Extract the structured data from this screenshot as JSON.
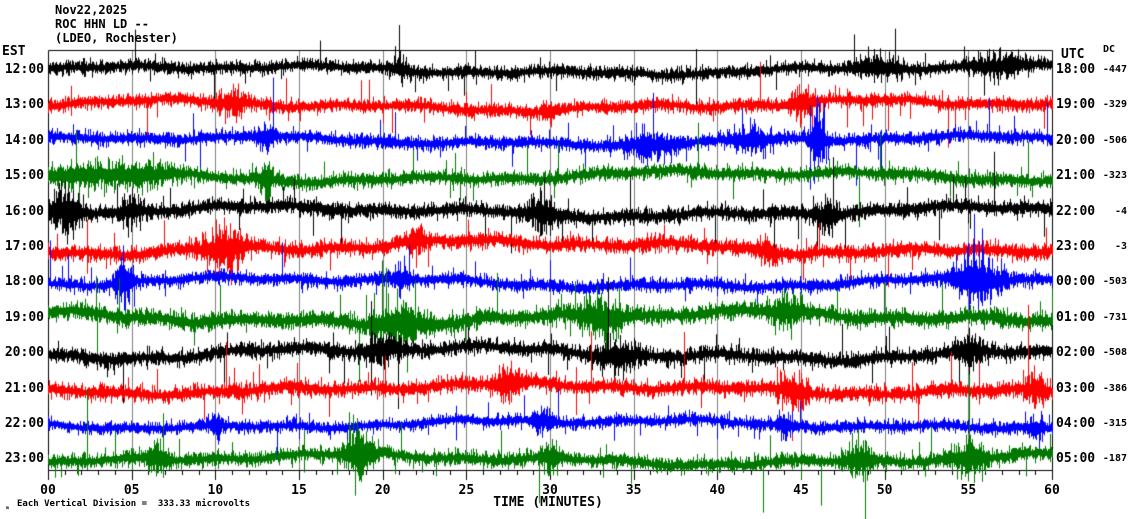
{
  "title": {
    "line1": "Nov22,2025",
    "line2": "ROC HHN LD --",
    "line3": "(LDEO, Rochester)"
  },
  "axes": {
    "left_header": "EST",
    "right_header": "UTC",
    "dc_header": "DC",
    "x_ticks": [
      "00",
      "05",
      "10",
      "15",
      "20",
      "25",
      "30",
      "35",
      "40",
      "45",
      "50",
      "55",
      "60"
    ],
    "xlabel": "TIME (MINUTES)"
  },
  "footer": {
    "division_note": "Each Vertical Division =  333.33 microvolts",
    "watermark": "ₘ"
  },
  "chart_data": {
    "type": "line",
    "subtype": "helicorder-seismogram",
    "station_line": "ROC HHN LD --",
    "date": "Nov22,2025",
    "source": "(LDEO, Rochester)",
    "x_range_minutes": [
      0,
      60
    ],
    "minutes_per_major_division": 5,
    "microvolts_per_vertical_division": 333.33,
    "grid_color": "#7f7f7f",
    "border_color": "#000000",
    "colors_cycle": [
      "#000000",
      "#ff0000",
      "#0000ff",
      "#007800"
    ],
    "rows": [
      {
        "est": "12:00",
        "utc": "18:00",
        "dc": "-447",
        "color": "#000000",
        "seed": 11,
        "base_amp": 7.0,
        "wander": 3.5,
        "bursts": [
          {
            "m": 21,
            "w": 0.5,
            "g": 1.2
          },
          {
            "m": 49.5,
            "w": 1.2,
            "g": 1.6
          },
          {
            "m": 57,
            "w": 1.5,
            "g": 1.2
          }
        ]
      },
      {
        "est": "13:00",
        "utc": "19:00",
        "dc": "-329",
        "color": "#ff0000",
        "seed": 22,
        "base_amp": 7.0,
        "wander": 4.0,
        "bursts": [
          {
            "m": 11,
            "w": 0.8,
            "g": 1.5
          },
          {
            "m": 30,
            "w": 0.4,
            "g": 1.2
          },
          {
            "m": 45,
            "w": 0.6,
            "g": 1.8
          }
        ]
      },
      {
        "est": "14:00",
        "utc": "20:00",
        "dc": "-506",
        "color": "#0000ff",
        "seed": 33,
        "base_amp": 7.0,
        "wander": 3.5,
        "bursts": [
          {
            "m": 13,
            "w": 0.5,
            "g": 1.8
          },
          {
            "m": 36,
            "w": 1.5,
            "g": 1.6
          },
          {
            "m": 42,
            "w": 1.2,
            "g": 1.6
          },
          {
            "m": 46,
            "w": 0.4,
            "g": 4.5
          }
        ]
      },
      {
        "est": "15:00",
        "utc": "21:00",
        "dc": "-323",
        "color": "#007800",
        "seed": 44,
        "base_amp": 7.5,
        "wander": 4.0,
        "bursts": [
          {
            "m": 2,
            "w": 2.5,
            "g": 1.3
          },
          {
            "m": 6,
            "w": 1.5,
            "g": 1.2
          },
          {
            "m": 13,
            "w": 0.4,
            "g": 2.0
          }
        ]
      },
      {
        "est": "16:00",
        "utc": "22:00",
        "dc": "-4",
        "color": "#000000",
        "seed": 55,
        "base_amp": 8.0,
        "wander": 4.0,
        "bursts": [
          {
            "m": 1,
            "w": 1.0,
            "g": 2.2
          },
          {
            "m": 5,
            "w": 0.6,
            "g": 1.6
          },
          {
            "m": 29.5,
            "w": 0.8,
            "g": 1.8
          },
          {
            "m": 46.5,
            "w": 0.6,
            "g": 1.6
          }
        ]
      },
      {
        "est": "17:00",
        "utc": "23:00",
        "dc": "-3",
        "color": "#ff0000",
        "seed": 66,
        "base_amp": 8.0,
        "wander": 5.0,
        "bursts": [
          {
            "m": 10.5,
            "w": 1.2,
            "g": 2.2
          },
          {
            "m": 22,
            "w": 0.5,
            "g": 1.4
          },
          {
            "m": 43,
            "w": 0.6,
            "g": 1.3
          }
        ]
      },
      {
        "est": "18:00",
        "utc": "00:00",
        "dc": "-503",
        "color": "#0000ff",
        "seed": 77,
        "base_amp": 7.0,
        "wander": 4.0,
        "bursts": [
          {
            "m": 4.5,
            "w": 0.5,
            "g": 3.2
          },
          {
            "m": 21,
            "w": 0.5,
            "g": 1.5
          },
          {
            "m": 55.5,
            "w": 1.4,
            "g": 3.2
          }
        ]
      },
      {
        "est": "19:00",
        "utc": "01:00",
        "dc": "-731",
        "color": "#007800",
        "seed": 88,
        "base_amp": 9.0,
        "wander": 5.0,
        "bursts": [
          {
            "m": 21,
            "w": 1.5,
            "g": 1.8
          },
          {
            "m": 33,
            "w": 1.5,
            "g": 1.6
          },
          {
            "m": 44,
            "w": 1.0,
            "g": 1.3
          }
        ]
      },
      {
        "est": "20:00",
        "utc": "02:00",
        "dc": "-508",
        "color": "#000000",
        "seed": 99,
        "base_amp": 8.0,
        "wander": 5.0,
        "bursts": [
          {
            "m": 20,
            "w": 1.0,
            "g": 1.3
          },
          {
            "m": 34,
            "w": 1.2,
            "g": 1.7
          },
          {
            "m": 55,
            "w": 0.8,
            "g": 1.4
          }
        ]
      },
      {
        "est": "21:00",
        "utc": "03:00",
        "dc": "-386",
        "color": "#ff0000",
        "seed": 110,
        "base_amp": 8.0,
        "wander": 4.0,
        "bursts": [
          {
            "m": 27.5,
            "w": 0.8,
            "g": 1.7
          },
          {
            "m": 44.5,
            "w": 0.8,
            "g": 1.8
          },
          {
            "m": 59,
            "w": 0.6,
            "g": 1.5
          }
        ]
      },
      {
        "est": "22:00",
        "utc": "04:00",
        "dc": "-315",
        "color": "#0000ff",
        "seed": 121,
        "base_amp": 6.5,
        "wander": 3.5,
        "bursts": [
          {
            "m": 10,
            "w": 0.4,
            "g": 1.8
          },
          {
            "m": 29.5,
            "w": 0.6,
            "g": 1.6
          },
          {
            "m": 44,
            "w": 0.5,
            "g": 1.5
          },
          {
            "m": 59,
            "w": 0.5,
            "g": 1.6
          }
        ]
      },
      {
        "est": "23:00",
        "utc": "05:00",
        "dc": "-187",
        "color": "#007800",
        "seed": 132,
        "base_amp": 7.5,
        "wander": 4.0,
        "bursts": [
          {
            "m": 6.5,
            "w": 0.5,
            "g": 1.6
          },
          {
            "m": 18.5,
            "w": 0.8,
            "g": 3.2
          },
          {
            "m": 30,
            "w": 0.5,
            "g": 1.6
          },
          {
            "m": 48.5,
            "w": 0.8,
            "g": 2.2
          },
          {
            "m": 55,
            "w": 1.0,
            "g": 2.0
          }
        ]
      }
    ]
  }
}
